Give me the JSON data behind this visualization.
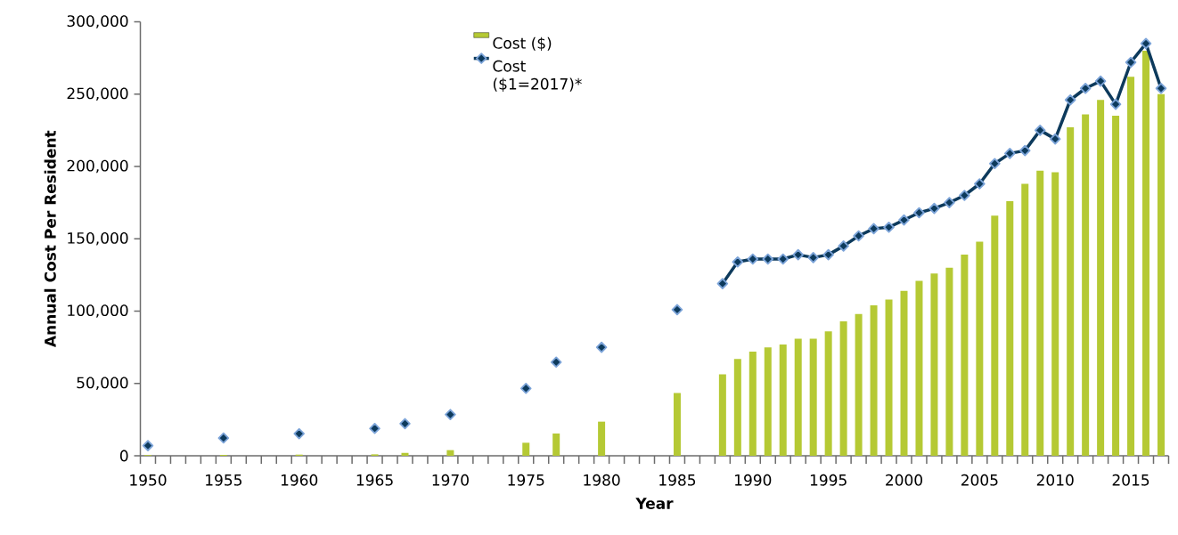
{
  "chart_data": {
    "type": "bar",
    "xlabel": "Year",
    "ylabel": "Annual Cost Per Resident",
    "categories": [
      "1950",
      null,
      null,
      null,
      null,
      "1955",
      null,
      null,
      null,
      null,
      "1960",
      null,
      null,
      null,
      null,
      "1965",
      null,
      null,
      null,
      null,
      "1970",
      null,
      null,
      null,
      null,
      "1975",
      null,
      null,
      null,
      null,
      "1980",
      null,
      null,
      null,
      null,
      "1985",
      null,
      null,
      null,
      null,
      "1990",
      null,
      null,
      null,
      null,
      "1995",
      null,
      null,
      null,
      null,
      "2000",
      null,
      null,
      null,
      null,
      "2005",
      null,
      null,
      null,
      null,
      "2010",
      null,
      null,
      null,
      null,
      "2015",
      null,
      null
    ],
    "series": [
      {
        "name": "Cost ($)",
        "color": "#b5c934",
        "values": [
          500,
          null,
          null,
          null,
          null,
          600,
          null,
          null,
          null,
          null,
          800,
          null,
          null,
          null,
          null,
          1000,
          null,
          2000,
          null,
          null,
          3900,
          null,
          null,
          null,
          null,
          9000,
          null,
          15400,
          null,
          null,
          23600,
          null,
          null,
          null,
          null,
          43400,
          null,
          null,
          56300,
          67000,
          72000,
          75000,
          77000,
          81000,
          81000,
          86000,
          93000,
          98000,
          104000,
          108000,
          114000,
          121000,
          126000,
          130000,
          139000,
          148000,
          166000,
          176000,
          188000,
          197000,
          196000,
          227000,
          236000,
          246000,
          235000,
          262000,
          280000,
          250000
        ]
      },
      {
        "name": "Cost ($1=2017)*",
        "type": "line",
        "color": "#0d3a5c",
        "marker": "diamond",
        "line_style": "solid",
        "values": [
          7000,
          null,
          null,
          null,
          null,
          12300,
          null,
          null,
          null,
          null,
          15300,
          null,
          null,
          null,
          null,
          18900,
          null,
          22200,
          null,
          null,
          28500,
          null,
          null,
          null,
          null,
          46600,
          null,
          64700,
          null,
          null,
          75000,
          null,
          null,
          null,
          null,
          101000,
          null,
          null,
          119000,
          134000,
          136000,
          136000,
          136000,
          139000,
          137000,
          139000,
          145000,
          152000,
          157000,
          158000,
          163000,
          168000,
          171000,
          175000,
          180000,
          188000,
          202000,
          209000,
          211000,
          225000,
          219000,
          246000,
          254000,
          259000,
          243000,
          272000,
          285000,
          254000
        ]
      }
    ],
    "ylim": [
      0,
      300000
    ],
    "yticks": [
      {
        "value": 0,
        "label": "0"
      },
      {
        "value": 50000,
        "label": "50,000"
      },
      {
        "value": 100000,
        "label": "100,000"
      },
      {
        "value": 150000,
        "label": "150,000"
      },
      {
        "value": 200000,
        "label": "200,000"
      },
      {
        "value": 250000,
        "label": "250,000"
      },
      {
        "value": 300000,
        "label": "300,000"
      }
    ],
    "legend": "top"
  }
}
